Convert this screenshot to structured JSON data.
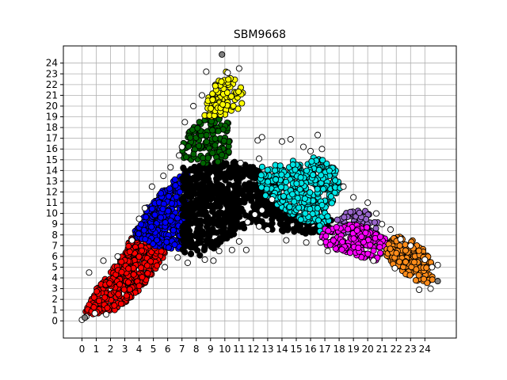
{
  "chart_data": {
    "type": "scatter",
    "title": "SBM9668",
    "xlabel": "",
    "ylabel": "",
    "xlim": [
      -1.3,
      26.2
    ],
    "ylim": [
      -1.6,
      25.6
    ],
    "grid": true,
    "x_ticks": [
      "0",
      "1",
      "2",
      "3",
      "4",
      "5",
      "6",
      "7",
      "8",
      "9",
      "10",
      "11",
      "12",
      "13",
      "14",
      "15",
      "16",
      "17",
      "18",
      "19",
      "20",
      "21",
      "22",
      "23",
      "24"
    ],
    "y_ticks": [
      "0",
      "1",
      "2",
      "3",
      "4",
      "5",
      "6",
      "7",
      "8",
      "9",
      "10",
      "11",
      "12",
      "13",
      "14",
      "15",
      "16",
      "17",
      "18",
      "19",
      "20",
      "21",
      "22",
      "23",
      "24"
    ],
    "marker_edge_color": "#000000",
    "series": [
      {
        "color": "#ff0000",
        "polygon": [
          [
            0.1,
            0.6
          ],
          [
            1,
            3
          ],
          [
            2,
            4.5
          ],
          [
            3,
            6.5
          ],
          [
            3.5,
            8
          ],
          [
            5,
            7
          ],
          [
            6,
            6.5
          ],
          [
            5.5,
            5.5
          ],
          [
            4.5,
            3.5
          ],
          [
            3.3,
            2
          ],
          [
            2.4,
            1
          ],
          [
            1,
            0.6
          ]
        ],
        "count": 450
      },
      {
        "color": "#0000ff",
        "polygon": [
          [
            3.5,
            8
          ],
          [
            4,
            9
          ],
          [
            4.5,
            10.5
          ],
          [
            5.5,
            12
          ],
          [
            6.7,
            13.5
          ],
          [
            7.4,
            14.3
          ],
          [
            7.4,
            6.5
          ],
          [
            6,
            6.8
          ],
          [
            4.8,
            7
          ]
        ],
        "count": 330
      },
      {
        "color": "#000000",
        "polygon": [
          [
            7,
            14.3
          ],
          [
            8.5,
            14.6
          ],
          [
            9.8,
            14.8
          ],
          [
            10.8,
            14.8
          ],
          [
            12,
            14.3
          ],
          [
            13,
            13.4
          ],
          [
            13.6,
            12.6
          ],
          [
            14.1,
            11
          ],
          [
            14.8,
            9.9
          ],
          [
            16,
            9.5
          ],
          [
            17,
            9.7
          ],
          [
            17.7,
            9.2
          ],
          [
            17.2,
            8.4
          ],
          [
            15.5,
            8.1
          ],
          [
            13.5,
            8.4
          ],
          [
            12,
            9.1
          ],
          [
            10.8,
            8.2
          ],
          [
            9.5,
            7
          ],
          [
            8.5,
            6
          ],
          [
            7,
            6.3
          ]
        ],
        "count": 750
      },
      {
        "color": "#00e5e5",
        "polygon": [
          [
            12.6,
            14.4
          ],
          [
            14,
            14.7
          ],
          [
            15,
            15
          ],
          [
            16,
            15.3
          ],
          [
            17,
            15
          ],
          [
            17.8,
            14
          ],
          [
            18.2,
            12.5
          ],
          [
            17.4,
            10.7
          ],
          [
            17.3,
            9.2
          ],
          [
            16.7,
            8.3
          ],
          [
            15.7,
            9
          ],
          [
            14.8,
            9.7
          ],
          [
            13.8,
            10.6
          ],
          [
            12.8,
            11.7
          ],
          [
            12.3,
            12.8
          ]
        ],
        "count": 380
      },
      {
        "color": "#006400",
        "polygon": [
          [
            7.1,
            14.9
          ],
          [
            7,
            16
          ],
          [
            7.2,
            17.4
          ],
          [
            8,
            18.6
          ],
          [
            9.5,
            19
          ],
          [
            10.3,
            18.6
          ],
          [
            10.1,
            17.2
          ],
          [
            10.6,
            16.2
          ],
          [
            10.4,
            15
          ],
          [
            9,
            14.6
          ]
        ],
        "count": 140
      },
      {
        "color": "#ffff00",
        "polygon": [
          [
            8.4,
            19
          ],
          [
            8.6,
            20.3
          ],
          [
            9,
            21.6
          ],
          [
            9.5,
            22.7
          ],
          [
            10.2,
            23.5
          ],
          [
            10.8,
            22.4
          ],
          [
            11.3,
            21.5
          ],
          [
            11.2,
            20.2
          ],
          [
            10.8,
            19.2
          ],
          [
            9.6,
            19
          ]
        ],
        "count": 100
      },
      {
        "color": "#9966cc",
        "polygon": [
          [
            17.6,
            8.9
          ],
          [
            18,
            9.9
          ],
          [
            19,
            10.4
          ],
          [
            20,
            10.2
          ],
          [
            20.8,
            9.2
          ],
          [
            20.5,
            8.3
          ],
          [
            19,
            8.1
          ],
          [
            17.8,
            8.2
          ]
        ],
        "count": 80
      },
      {
        "color": "#ff00ff",
        "polygon": [
          [
            16.5,
            7.7
          ],
          [
            17,
            8.6
          ],
          [
            18.5,
            9
          ],
          [
            20,
            8.8
          ],
          [
            21.3,
            7.6
          ],
          [
            21.5,
            6.5
          ],
          [
            20.6,
            5.6
          ],
          [
            19,
            6.1
          ],
          [
            17.5,
            6.7
          ]
        ],
        "count": 170
      },
      {
        "color": "#ff8c1a",
        "polygon": [
          [
            21.2,
            6.2
          ],
          [
            21.6,
            7.7
          ],
          [
            22.6,
            7.9
          ],
          [
            23.6,
            7.2
          ],
          [
            24.4,
            5.7
          ],
          [
            24.8,
            4.1
          ],
          [
            24,
            3.2
          ],
          [
            23.3,
            3.7
          ],
          [
            22.3,
            4.7
          ],
          [
            21.6,
            5.3
          ]
        ],
        "count": 180
      },
      {
        "color": "#ffffff",
        "polygon": [
          [
            0,
            0
          ],
          [
            25.1,
            0
          ],
          [
            25.1,
            24
          ],
          [
            0,
            24
          ]
        ],
        "count": 0,
        "points": [
          [
            0,
            0.1
          ],
          [
            0.3,
            0.4
          ],
          [
            0.9,
            0.7
          ],
          [
            1.7,
            0.6
          ],
          [
            0.5,
            4.5
          ],
          [
            1.5,
            5.6
          ],
          [
            2.5,
            6
          ],
          [
            3.5,
            7.5
          ],
          [
            4,
            9.5
          ],
          [
            4.4,
            10.5
          ],
          [
            4.9,
            12.5
          ],
          [
            5.7,
            13.5
          ],
          [
            6.2,
            14.3
          ],
          [
            6.8,
            15.4
          ],
          [
            7,
            16.2
          ],
          [
            7.2,
            18.5
          ],
          [
            7.8,
            20
          ],
          [
            8.4,
            21
          ],
          [
            8.7,
            23.2
          ],
          [
            11,
            23.5
          ],
          [
            10.2,
            23.1
          ],
          [
            12.3,
            16.8
          ],
          [
            12.6,
            17.1
          ],
          [
            14,
            16.7
          ],
          [
            14.6,
            16.9
          ],
          [
            15.5,
            16.2
          ],
          [
            16,
            15.8
          ],
          [
            16.5,
            17.3
          ],
          [
            16.8,
            16
          ],
          [
            18.3,
            12.5
          ],
          [
            19,
            11.5
          ],
          [
            20,
            11
          ],
          [
            20.6,
            10
          ],
          [
            21,
            9
          ],
          [
            21.6,
            8.5
          ],
          [
            22.3,
            7.6
          ],
          [
            23,
            7
          ],
          [
            24,
            5.7
          ],
          [
            24.5,
            5
          ],
          [
            24.9,
            5.2
          ],
          [
            24.4,
            3
          ],
          [
            23.6,
            2.9
          ],
          [
            21.9,
            4.9
          ],
          [
            20.4,
            5.6
          ],
          [
            17.2,
            6.5
          ],
          [
            16.7,
            7.3
          ],
          [
            15.7,
            7.3
          ],
          [
            14.3,
            7.5
          ],
          [
            13,
            8.5
          ],
          [
            12.4,
            8.8
          ],
          [
            11,
            7.4
          ],
          [
            11.5,
            6.6
          ],
          [
            10.5,
            6.6
          ],
          [
            9.6,
            6.5
          ],
          [
            9.2,
            5.6
          ],
          [
            8.6,
            5.7
          ],
          [
            7.4,
            5.4
          ],
          [
            6.7,
            5.9
          ],
          [
            5.8,
            5
          ],
          [
            11.6,
            9.2
          ],
          [
            12.1,
            9.9
          ],
          [
            12.6,
            10.3
          ],
          [
            13.3,
            11.3
          ],
          [
            12.4,
            15.1
          ],
          [
            11.1,
            14.7
          ]
        ]
      },
      {
        "color": "#808080",
        "points": [
          [
            9.8,
            24.8
          ],
          [
            24.9,
            3.7
          ],
          [
            0.2,
            0.3
          ]
        ],
        "count": 0
      }
    ]
  }
}
